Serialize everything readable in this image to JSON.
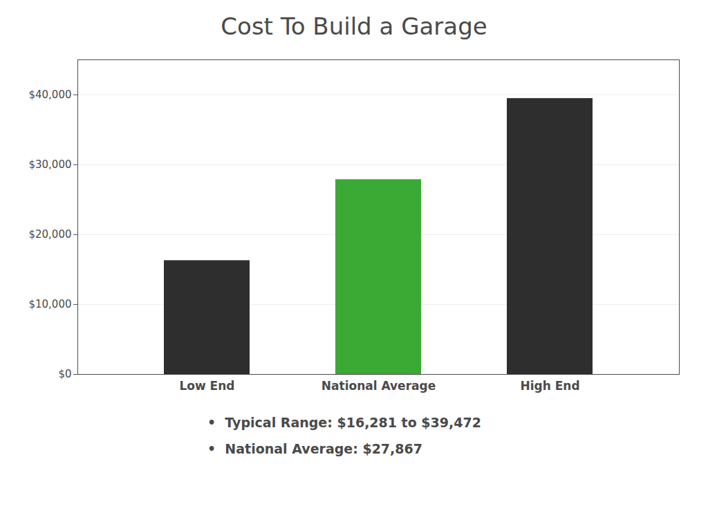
{
  "chart_data": {
    "type": "bar",
    "title": "Cost To Build a Garage",
    "categories": [
      "Low End",
      "National Average",
      "High End"
    ],
    "values": [
      16281,
      27867,
      39472
    ],
    "colors": [
      "#2e2e2e",
      "#3aaa35",
      "#2e2e2e"
    ],
    "ylim": [
      0,
      45000
    ],
    "yticks": [
      {
        "value": 0,
        "label": "$0"
      },
      {
        "value": 10000,
        "label": "$10,000"
      },
      {
        "value": 20000,
        "label": "$20,000"
      },
      {
        "value": 30000,
        "label": "$30,000"
      },
      {
        "value": 40000,
        "label": "$40,000"
      }
    ],
    "grid": true,
    "annotations": [
      "•  Typical Range: $16,281 to $39,472",
      "•  National Average: $27,867"
    ]
  }
}
